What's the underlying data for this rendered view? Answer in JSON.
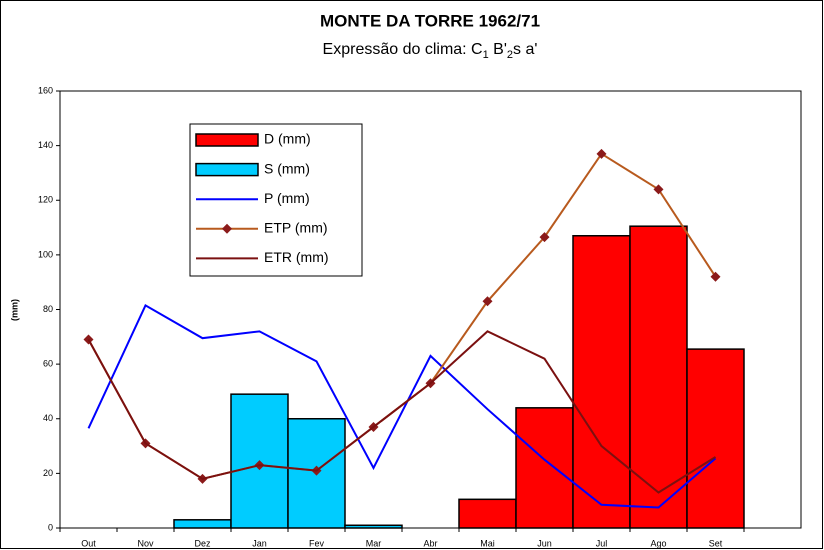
{
  "chart_data": {
    "type": "bar_line",
    "title": "MONTE DA TORRE 1962/71",
    "subtitle": [
      "Expressão do clima: C",
      "1",
      " B'",
      "2",
      "s a'"
    ],
    "y_label": "(mm)",
    "categories": [
      "Out",
      "Nov",
      "Dez",
      "Jan",
      "Fev",
      "Mar",
      "Abr",
      "Mai",
      "Jun",
      "Jul",
      "Ago",
      "Set",
      null
    ],
    "ylim": [
      0,
      160
    ],
    "yticks": [
      0,
      20,
      40,
      60,
      80,
      100,
      120,
      140,
      160
    ],
    "series": [
      {
        "name": "D (mm)",
        "kind": "bar",
        "color": "#ff0000",
        "values": [
          null,
          null,
          null,
          null,
          null,
          null,
          null,
          10.5,
          44,
          107,
          110.5,
          65.5,
          null
        ]
      },
      {
        "name": "S (mm)",
        "kind": "bar",
        "color": "#00ccff",
        "values": [
          null,
          null,
          3,
          49,
          40,
          1,
          null,
          null,
          null,
          null,
          null,
          null,
          null
        ]
      },
      {
        "name": "P (mm)",
        "kind": "line",
        "color": "#0000ff",
        "values": [
          36.5,
          81.5,
          69.5,
          72,
          61,
          22,
          63,
          43.5,
          25,
          8.5,
          7.5,
          25.5,
          null
        ]
      },
      {
        "name": "ETP (mm)",
        "kind": "line",
        "color": "#b85a1e",
        "marker_color": "#8b1a1a",
        "values": [
          69,
          31,
          18,
          23,
          21,
          37,
          53,
          83,
          106.5,
          137,
          124,
          92,
          null
        ]
      },
      {
        "name": "ETR (mm)",
        "kind": "line",
        "color": "#7b1010",
        "values": [
          69,
          31,
          18,
          23,
          21,
          37,
          53,
          72,
          62,
          30,
          13,
          26,
          null
        ]
      }
    ]
  }
}
